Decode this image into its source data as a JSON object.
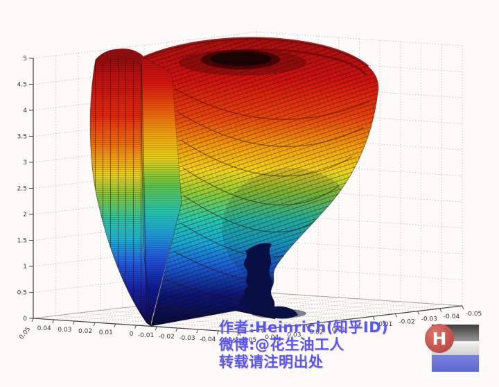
{
  "chart_data": {
    "type": "surface",
    "title": "",
    "description": "MATLAB-style 3D swirled rose/vase surface with jet colormap (dark red rim at top, through orange, yellow, green, cyan, blue, to dark navy at the bottom tip), dense black mesh lines, a dark hole at the top center, rendered inside a 3D axes box with dotted grey grid on the back walls and floor",
    "x_ticks": [
      "0.05",
      "0.04",
      "0.03",
      "0.02",
      "0.01",
      "0",
      "-0.01",
      "-0.02",
      "-0.03",
      "-0.04",
      "-0.05"
    ],
    "y_ticks": [
      "0.05",
      "0.04",
      "0.03",
      "0.02",
      "0.01",
      "0",
      "-0.01",
      "-0.02",
      "-0.03",
      "-0.04",
      "-0.05"
    ],
    "z_ticks": [
      "5",
      "4.5",
      "4",
      "3.5",
      "3",
      "2.5",
      "2",
      "1.5",
      "1",
      "0.5",
      "0"
    ],
    "x_range": [
      -0.05,
      0.05
    ],
    "y_range": [
      -0.05,
      0.05
    ],
    "z_range": [
      0,
      5
    ],
    "grid": "dotted",
    "legend": "none",
    "colormap": "jet",
    "colormap_stops": [
      "#8c0f0f",
      "#d01211",
      "#ee5a07",
      "#f0d41c",
      "#6fc93f",
      "#22c6b2",
      "#1a9fd8",
      "#1e55e0",
      "#0c1794",
      "#060b46"
    ]
  },
  "watermark": {
    "line1": "作者:Heinrich(知乎ID)",
    "line2": "微博:@花生油工人",
    "line3": "转载请注明出处",
    "color": "#5458f5"
  },
  "logo": {
    "letter": "H",
    "circle_color": "#c9534e",
    "band_top_color": "#3c3c3c",
    "band_mid_color": "#eeeeee",
    "band_bottom_color": "#6b74d6"
  },
  "colors": {
    "background": "#fcfbf9",
    "grid": "#c8c5c0",
    "axis": "#4a4a4a",
    "tick_label": "#333333",
    "surface_hole": "#1b0202",
    "surface_tail": "#081043"
  }
}
